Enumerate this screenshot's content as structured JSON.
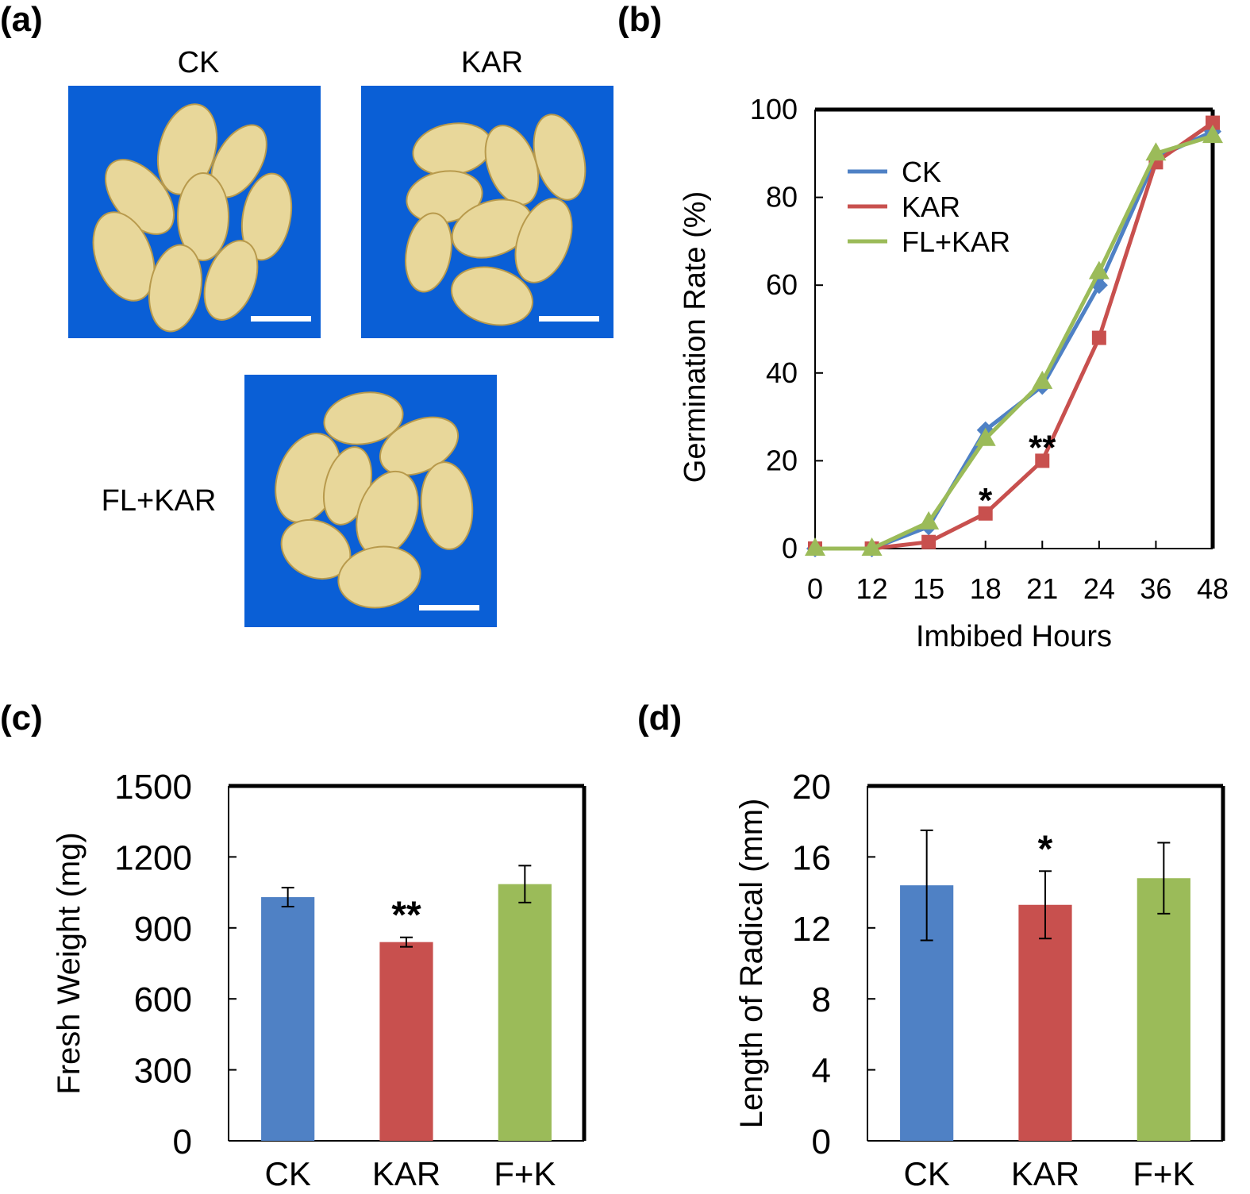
{
  "panels": {
    "a": {
      "label": "(a)",
      "photos": [
        {
          "caption": "CK"
        },
        {
          "caption": "KAR"
        },
        {
          "caption": "FL+KAR"
        }
      ]
    },
    "b": {
      "label": "(b)"
    },
    "c": {
      "label": "(c)"
    },
    "d": {
      "label": "(d)"
    }
  },
  "colors": {
    "CK": "#4f81c5",
    "KAR": "#c8504e",
    "FL+KAR": "#9bbb59",
    "photo_background": "#0a5fd6"
  },
  "chart_data": [
    {
      "id": "b",
      "type": "line",
      "title": "",
      "xlabel": "Imbibed Hours",
      "ylabel": "Germination Rate (%)",
      "categories": [
        "0",
        "12",
        "15",
        "18",
        "21",
        "24",
        "36",
        "48"
      ],
      "ylim": [
        0,
        100
      ],
      "yticks": [
        "0",
        "20",
        "40",
        "60",
        "80",
        "100"
      ],
      "legend_position": "top-left",
      "series": [
        {
          "name": "CK",
          "marker": "diamond",
          "values": [
            0,
            0,
            5,
            27,
            37,
            60,
            89,
            95
          ]
        },
        {
          "name": "KAR",
          "marker": "square",
          "values": [
            0,
            0,
            1.5,
            8,
            20,
            48,
            88,
            97
          ]
        },
        {
          "name": "FL+KAR",
          "marker": "triangle",
          "values": [
            0,
            0,
            6,
            25,
            38,
            63,
            90,
            94
          ]
        }
      ],
      "annotations": [
        {
          "text": "*",
          "category": "18",
          "value": 8
        },
        {
          "text": "**",
          "category": "21",
          "value": 20
        }
      ]
    },
    {
      "id": "c",
      "type": "bar",
      "xlabel": "",
      "ylabel": "Fresh Weight (mg)",
      "categories": [
        "CK",
        "KAR",
        "F+K"
      ],
      "values": [
        1030,
        840,
        1085
      ],
      "errors": [
        40,
        20,
        78
      ],
      "ylim": [
        0,
        1500
      ],
      "yticks": [
        "0",
        "300",
        "600",
        "900",
        "1200",
        "1500"
      ],
      "annotations": [
        {
          "text": "**",
          "category": "KAR"
        }
      ]
    },
    {
      "id": "d",
      "type": "bar",
      "xlabel": "",
      "ylabel": "Length of Radical (mm)",
      "categories": [
        "CK",
        "KAR",
        "F+K"
      ],
      "values": [
        14.4,
        13.3,
        14.8
      ],
      "errors": [
        3.1,
        1.9,
        2.0
      ],
      "ylim": [
        0,
        20
      ],
      "yticks": [
        "0",
        "4",
        "8",
        "12",
        "16",
        "20"
      ],
      "annotations": [
        {
          "text": "*",
          "category": "KAR"
        }
      ]
    }
  ]
}
